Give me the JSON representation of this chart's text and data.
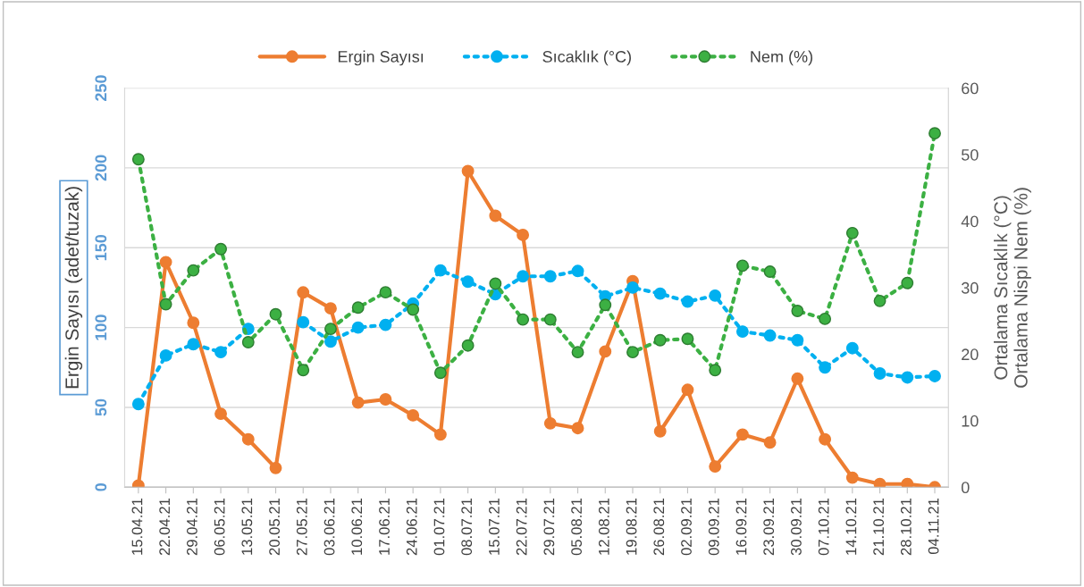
{
  "chart_data": {
    "type": "line",
    "categories": [
      "15.04.21",
      "22.04.21",
      "29.04.21",
      "06.05.21",
      "13.05.21",
      "20.05.21",
      "27.05.21",
      "03.06.21",
      "10.06.21",
      "17.06.21",
      "24.06.21",
      "01.07.21",
      "08.07.21",
      "15.07.21",
      "22.07.21",
      "29.07.21",
      "05.08.21",
      "12.08.21",
      "19.08.21",
      "26.08.21",
      "02.09.21",
      "09.09.21",
      "16.09.21",
      "23.09.21",
      "30.09.21",
      "07.10.21",
      "14.10.21",
      "21.10.21",
      "28.10.21",
      "04.11.21"
    ],
    "series": [
      {
        "name": "Ergin Sayısı",
        "color": "#ed7d31",
        "line_style": "solid",
        "values": [
          1,
          141,
          103,
          46,
          30,
          12,
          122,
          112,
          53,
          55,
          45,
          33,
          198,
          170,
          158,
          40,
          37,
          85,
          129,
          35,
          61,
          13,
          33,
          28,
          68,
          30,
          6,
          2,
          2,
          0
        ]
      },
      {
        "name": "Sıcaklık (°C)",
        "color": "#00b0f0",
        "axis": "y2",
        "line_style": "dotted",
        "values": [
          12.5,
          19.8,
          21.5,
          20.3,
          23.8,
          null,
          24.8,
          21.9,
          24.0,
          24.4,
          27.6,
          32.6,
          30.9,
          29.0,
          31.7,
          31.7,
          32.5,
          28.7,
          30.0,
          29.1,
          27.9,
          28.8,
          23.4,
          22.8,
          22.1,
          18.0,
          20.9,
          17.1,
          16.5,
          16.7
        ]
      },
      {
        "name": "Nem (%)",
        "color": "#3cb043",
        "axis": "y2",
        "line_style": "dotted",
        "values": [
          49.3,
          27.5,
          32.6,
          35.8,
          21.8,
          26.0,
          17.6,
          23.8,
          27.0,
          29.3,
          26.7,
          17.2,
          21.3,
          30.6,
          25.2,
          25.2,
          20.3,
          27.4,
          20.3,
          22.1,
          22.3,
          17.6,
          33.3,
          32.4,
          26.5,
          25.3,
          38.2,
          28.0,
          30.7,
          53.2
        ]
      }
    ],
    "ylabel": "Ergin Sayısı (adet/tuzak)",
    "y2label": "Ortalama Sıcaklık (°C)\nOrtalama Nispi Nem (%)",
    "ylim": [
      0,
      250
    ],
    "yticks": [
      0,
      50,
      100,
      150,
      200,
      250
    ],
    "y2lim": [
      0,
      60
    ],
    "y2ticks": [
      0,
      10,
      20,
      30,
      40,
      50,
      60
    ],
    "grid": "y",
    "legend": "top",
    "marker": "circle"
  }
}
